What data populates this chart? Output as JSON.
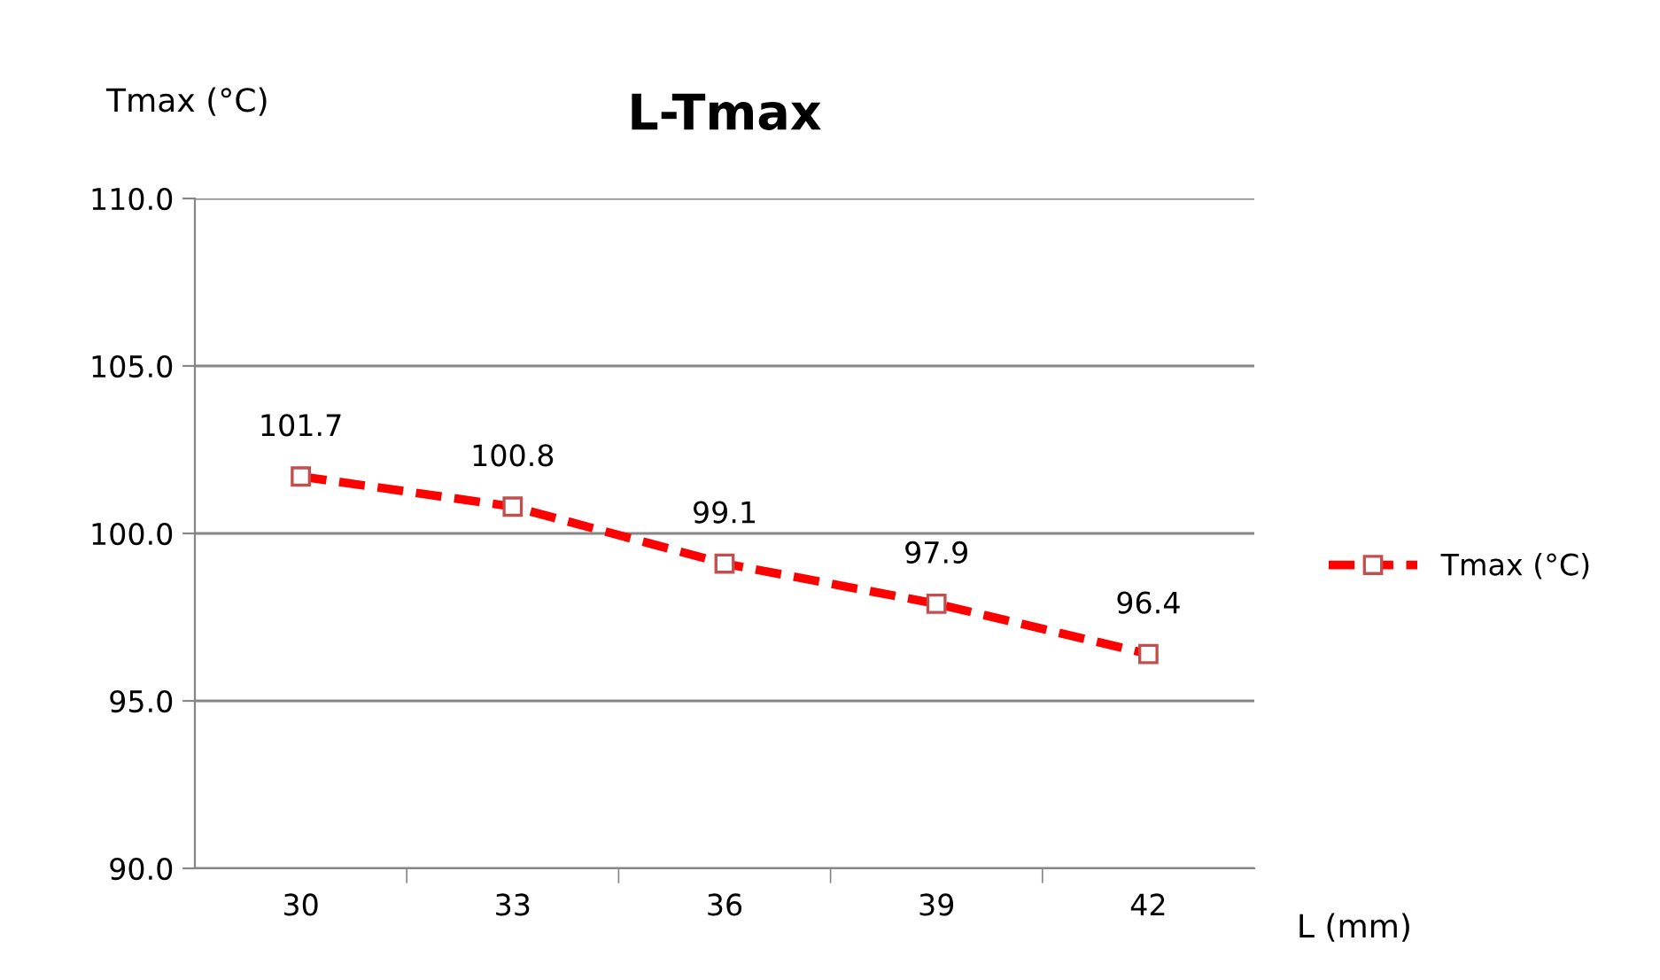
{
  "chart_data": {
    "type": "line",
    "title": "L-Tmax",
    "xlabel": "L (mm)",
    "ylabel": "Tmax (°C)",
    "categories": [
      "30",
      "33",
      "36",
      "39",
      "42"
    ],
    "series": [
      {
        "name": "Tmax (°C)",
        "color": "#ff0000",
        "values": [
          101.7,
          100.8,
          99.1,
          97.9,
          96.4
        ]
      }
    ],
    "ylim": [
      90,
      110
    ],
    "yticks": [
      {
        "value": 90,
        "label": "90.0"
      },
      {
        "value": 95,
        "label": "95.0"
      },
      {
        "value": 100,
        "label": "100.0"
      },
      {
        "value": 105,
        "label": "105.0"
      },
      {
        "value": 110,
        "label": "110.0"
      }
    ],
    "grid": "y",
    "legend": "right",
    "marker": "square",
    "line_style": "dashed",
    "data_labels": true
  }
}
